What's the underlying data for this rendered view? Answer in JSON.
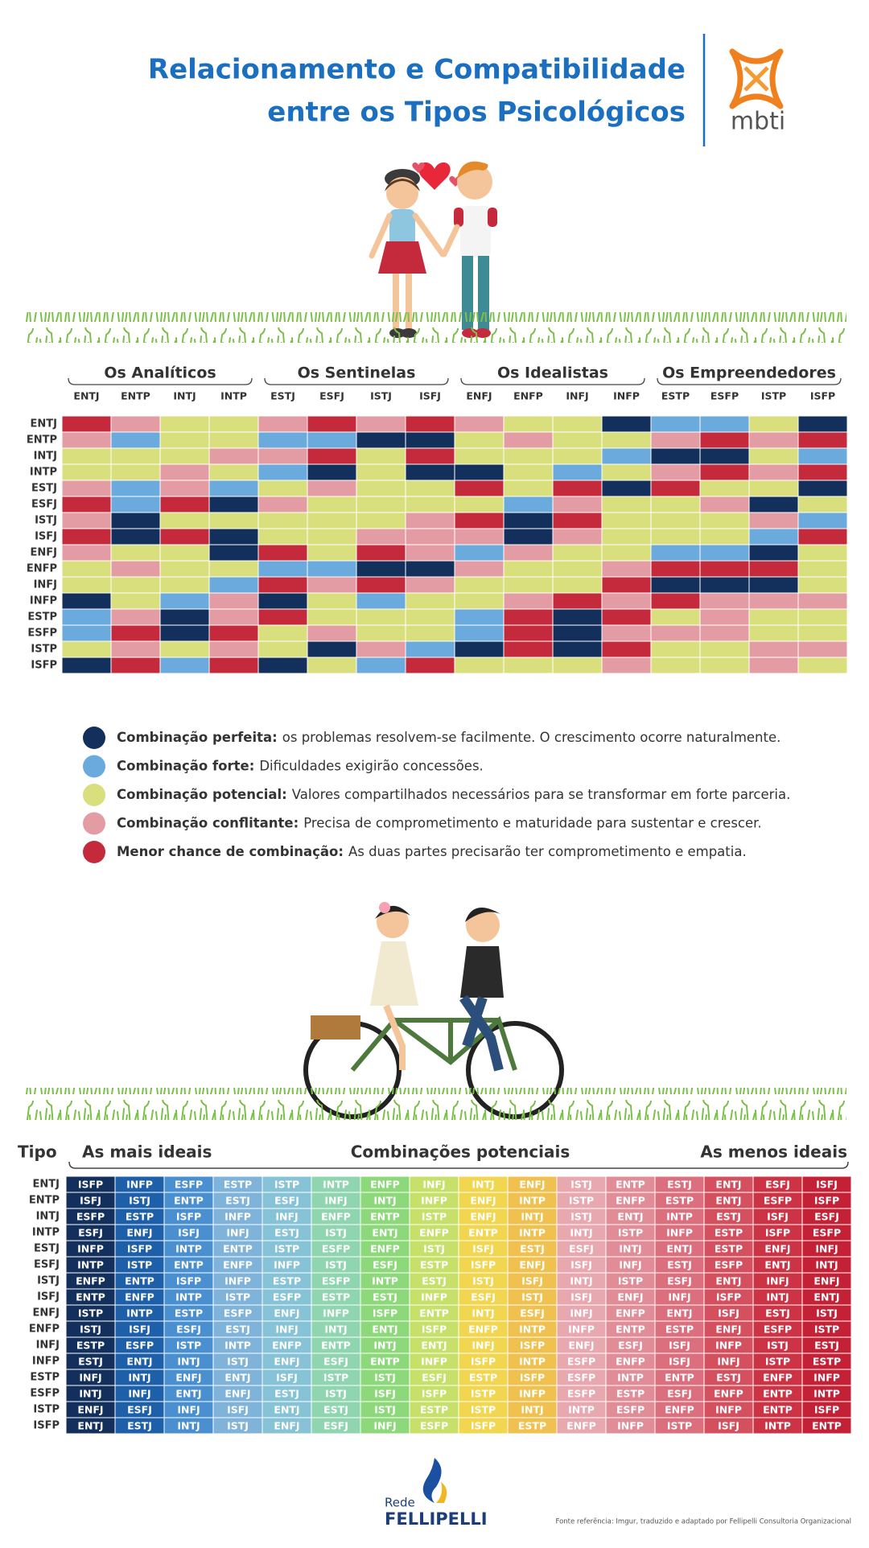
{
  "header": {
    "title_lines": [
      "Relacionamento e Compatibilidade",
      "entre os Tipos Psicológicos"
    ],
    "logo": "mbti"
  },
  "matrix": {
    "groups": [
      "Os Analíticos",
      "Os Sentinelas",
      "Os Idealistas",
      "Os Empreendedores"
    ],
    "columns": [
      "ENTJ",
      "ENTP",
      "INTJ",
      "INTP",
      "ESTJ",
      "ESFJ",
      "ISTJ",
      "ISFJ",
      "ENFJ",
      "ENFP",
      "INFJ",
      "INFP",
      "ESTP",
      "ESFP",
      "ISTP",
      "ISFP"
    ],
    "rows": [
      "ENTJ",
      "ENTP",
      "INTJ",
      "INTP",
      "ESTJ",
      "ESFJ",
      "ISTJ",
      "ISFJ",
      "ENFJ",
      "ENFP",
      "INFJ",
      "INFP",
      "ESTP",
      "ESFP",
      "ISTP",
      "ISFP"
    ],
    "cells": [
      [
        "#c42a3c",
        "#e49ca4",
        "#d8df7c",
        "#d8df7c",
        "#e49ca4",
        "#c42a3c",
        "#e49ca4",
        "#c42a3c",
        "#e49ca4",
        "#d8df7c",
        "#d8df7c",
        "#13305c",
        "#6aaadc",
        "#6aaadc",
        "#d8df7c",
        "#13305c"
      ],
      [
        "#e49ca4",
        "#6aaadc",
        "#d8df7c",
        "#d8df7c",
        "#6aaadc",
        "#6aaadc",
        "#13305c",
        "#13305c",
        "#d8df7c",
        "#e49ca4",
        "#d8df7c",
        "#d8df7c",
        "#e49ca4",
        "#c42a3c",
        "#e49ca4",
        "#c42a3c"
      ],
      [
        "#d8df7c",
        "#d8df7c",
        "#d8df7c",
        "#e49ca4",
        "#e49ca4",
        "#c42a3c",
        "#d8df7c",
        "#c42a3c",
        "#d8df7c",
        "#d8df7c",
        "#d8df7c",
        "#6aaadc",
        "#13305c",
        "#13305c",
        "#d8df7c",
        "#6aaadc"
      ],
      [
        "#d8df7c",
        "#d8df7c",
        "#e49ca4",
        "#d8df7c",
        "#6aaadc",
        "#13305c",
        "#d8df7c",
        "#13305c",
        "#13305c",
        "#d8df7c",
        "#6aaadc",
        "#d8df7c",
        "#e49ca4",
        "#c42a3c",
        "#e49ca4",
        "#c42a3c"
      ],
      [
        "#e49ca4",
        "#6aaadc",
        "#e49ca4",
        "#6aaadc",
        "#d8df7c",
        "#e49ca4",
        "#d8df7c",
        "#d8df7c",
        "#c42a3c",
        "#d8df7c",
        "#c42a3c",
        "#13305c",
        "#c42a3c",
        "#d8df7c",
        "#d8df7c",
        "#13305c"
      ],
      [
        "#c42a3c",
        "#6aaadc",
        "#c42a3c",
        "#13305c",
        "#e49ca4",
        "#d8df7c",
        "#d8df7c",
        "#d8df7c",
        "#d8df7c",
        "#6aaadc",
        "#e49ca4",
        "#d8df7c",
        "#d8df7c",
        "#e49ca4",
        "#13305c",
        "#d8df7c"
      ],
      [
        "#e49ca4",
        "#13305c",
        "#d8df7c",
        "#d8df7c",
        "#d8df7c",
        "#d8df7c",
        "#d8df7c",
        "#e49ca4",
        "#c42a3c",
        "#13305c",
        "#c42a3c",
        "#d8df7c",
        "#d8df7c",
        "#d8df7c",
        "#e49ca4",
        "#6aaadc"
      ],
      [
        "#c42a3c",
        "#13305c",
        "#c42a3c",
        "#13305c",
        "#d8df7c",
        "#d8df7c",
        "#e49ca4",
        "#e49ca4",
        "#e49ca4",
        "#13305c",
        "#e49ca4",
        "#d8df7c",
        "#d8df7c",
        "#d8df7c",
        "#6aaadc",
        "#c42a3c"
      ],
      [
        "#e49ca4",
        "#d8df7c",
        "#d8df7c",
        "#13305c",
        "#c42a3c",
        "#d8df7c",
        "#c42a3c",
        "#e49ca4",
        "#6aaadc",
        "#e49ca4",
        "#d8df7c",
        "#d8df7c",
        "#6aaadc",
        "#6aaadc",
        "#13305c",
        "#d8df7c"
      ],
      [
        "#d8df7c",
        "#e49ca4",
        "#d8df7c",
        "#d8df7c",
        "#6aaadc",
        "#6aaadc",
        "#13305c",
        "#13305c",
        "#e49ca4",
        "#d8df7c",
        "#d8df7c",
        "#e49ca4",
        "#c42a3c",
        "#c42a3c",
        "#c42a3c",
        "#d8df7c"
      ],
      [
        "#d8df7c",
        "#d8df7c",
        "#d8df7c",
        "#6aaadc",
        "#c42a3c",
        "#e49ca4",
        "#c42a3c",
        "#e49ca4",
        "#d8df7c",
        "#d8df7c",
        "#d8df7c",
        "#c42a3c",
        "#13305c",
        "#13305c",
        "#13305c",
        "#d8df7c"
      ],
      [
        "#13305c",
        "#d8df7c",
        "#6aaadc",
        "#e49ca4",
        "#13305c",
        "#d8df7c",
        "#6aaadc",
        "#d8df7c",
        "#d8df7c",
        "#e49ca4",
        "#c42a3c",
        "#e49ca4",
        "#c42a3c",
        "#e49ca4",
        "#e49ca4",
        "#e49ca4"
      ],
      [
        "#6aaadc",
        "#e49ca4",
        "#13305c",
        "#e49ca4",
        "#c42a3c",
        "#d8df7c",
        "#d8df7c",
        "#d8df7c",
        "#6aaadc",
        "#c42a3c",
        "#13305c",
        "#c42a3c",
        "#d8df7c",
        "#e49ca4",
        "#d8df7c",
        "#d8df7c"
      ],
      [
        "#6aaadc",
        "#c42a3c",
        "#13305c",
        "#c42a3c",
        "#d8df7c",
        "#e49ca4",
        "#d8df7c",
        "#d8df7c",
        "#6aaadc",
        "#c42a3c",
        "#13305c",
        "#e49ca4",
        "#e49ca4",
        "#e49ca4",
        "#d8df7c",
        "#d8df7c"
      ],
      [
        "#d8df7c",
        "#e49ca4",
        "#d8df7c",
        "#e49ca4",
        "#d8df7c",
        "#13305c",
        "#e49ca4",
        "#6aaadc",
        "#13305c",
        "#c42a3c",
        "#13305c",
        "#c42a3c",
        "#d8df7c",
        "#d8df7c",
        "#e49ca4",
        "#e49ca4"
      ],
      [
        "#13305c",
        "#c42a3c",
        "#6aaadc",
        "#c42a3c",
        "#13305c",
        "#d8df7c",
        "#6aaadc",
        "#c42a3c",
        "#d8df7c",
        "#d8df7c",
        "#d8df7c",
        "#e49ca4",
        "#d8df7c",
        "#d8df7c",
        "#e49ca4",
        "#d8df7c"
      ]
    ]
  },
  "legend": [
    {
      "label": "Combinação perfeita:",
      "text": "os problemas resolvem-se facilmente. O crescimento ocorre naturalmente.",
      "color": "#13305c"
    },
    {
      "label": "Combinação forte:",
      "text": "Dificuldades exigirão concessões.",
      "color": "#6aaadc"
    },
    {
      "label": "Combinação potencial:",
      "text": "Valores compartilhados necessários para se transformar em forte parceria.",
      "color": "#d8df7c"
    },
    {
      "label": "Combinação conflitante:",
      "text": "Precisa de comprometimento e maturidade para sustentar e crescer.",
      "color": "#e49ca4"
    },
    {
      "label": "Menor chance de combinação:",
      "text": "As duas partes precisarão ter comprometimento e empatia.",
      "color": "#c42a3c"
    }
  ],
  "ranking": {
    "type_header": "Tipo",
    "best_header": "As mais ideais",
    "mid_header": "Combinações potenciais",
    "worst_header": "As menos ideais",
    "column_colors": [
      "#13305c",
      "#1d5fa8",
      "#4a90d0",
      "#7fb3d9",
      "#86c3d6",
      "#8fd6b0",
      "#8cd87a",
      "#c6e06a",
      "#f2d64f",
      "#f0c14e",
      "#e8a8b0",
      "#e08d98",
      "#db6f7e",
      "#d4505f",
      "#cc3446",
      "#c42036"
    ],
    "rows": [
      {
        "type": "ENTJ",
        "matches": [
          "ISFP",
          "INFP",
          "ESFP",
          "ESTP",
          "ISTP",
          "INTP",
          "ENFP",
          "INFJ",
          "INTJ",
          "ENFJ",
          "ISTJ",
          "ENTP",
          "ESTJ",
          "ENTJ",
          "ESFJ",
          "ISFJ"
        ]
      },
      {
        "type": "ENTP",
        "matches": [
          "ISFJ",
          "ISTJ",
          "ENTP",
          "ESTJ",
          "ESFJ",
          "INFJ",
          "INTJ",
          "INFP",
          "ENFJ",
          "INTP",
          "ISTP",
          "ENFP",
          "ESTP",
          "ENTJ",
          "ESFP",
          "ISFP"
        ]
      },
      {
        "type": "INTJ",
        "matches": [
          "ESFP",
          "ESTP",
          "ISFP",
          "INFP",
          "INFJ",
          "ENFP",
          "ENTP",
          "ISTP",
          "ENFJ",
          "INTJ",
          "ISTJ",
          "ENTJ",
          "INTP",
          "ESTJ",
          "ISFJ",
          "ESFJ"
        ]
      },
      {
        "type": "INTP",
        "matches": [
          "ESFJ",
          "ENFJ",
          "ISFJ",
          "INFJ",
          "ESTJ",
          "ISTJ",
          "ENTJ",
          "ENFP",
          "ENTP",
          "INTP",
          "INTJ",
          "ISTP",
          "INFP",
          "ESTP",
          "ISFP",
          "ESFP"
        ]
      },
      {
        "type": "ESTJ",
        "matches": [
          "INFP",
          "ISFP",
          "INTP",
          "ENTP",
          "ISTP",
          "ESFP",
          "ENFP",
          "ISTJ",
          "ISFJ",
          "ESTJ",
          "ESFJ",
          "INTJ",
          "ENTJ",
          "ESTP",
          "ENFJ",
          "INFJ"
        ]
      },
      {
        "type": "ESFJ",
        "matches": [
          "INTP",
          "ISTP",
          "ENTP",
          "ENFP",
          "INFP",
          "ISTJ",
          "ESFJ",
          "ESTP",
          "ISFP",
          "ENFJ",
          "ISFJ",
          "INFJ",
          "ESTJ",
          "ESFP",
          "ENTJ",
          "INTJ"
        ]
      },
      {
        "type": "ISTJ",
        "matches": [
          "ENFP",
          "ENTP",
          "ISFP",
          "INFP",
          "ESTP",
          "ESFP",
          "INTP",
          "ESTJ",
          "ISTJ",
          "ISFJ",
          "INTJ",
          "ISTP",
          "ESFJ",
          "ENTJ",
          "INFJ",
          "ENFJ"
        ]
      },
      {
        "type": "ISFJ",
        "matches": [
          "ENTP",
          "ENFP",
          "INTP",
          "ISTP",
          "ESFP",
          "ESTP",
          "ESTJ",
          "INFP",
          "ESFJ",
          "ISTJ",
          "ISFJ",
          "ENFJ",
          "INFJ",
          "ISFP",
          "INTJ",
          "ENTJ"
        ]
      },
      {
        "type": "ENFJ",
        "matches": [
          "ISTP",
          "INTP",
          "ESTP",
          "ESFP",
          "ENFJ",
          "INFP",
          "ISFP",
          "ENTP",
          "INTJ",
          "ESFJ",
          "INFJ",
          "ENFP",
          "ENTJ",
          "ISFJ",
          "ESTJ",
          "ISTJ"
        ]
      },
      {
        "type": "ENFP",
        "matches": [
          "ISTJ",
          "ISFJ",
          "ESFJ",
          "ESTJ",
          "INFJ",
          "INTJ",
          "ENTJ",
          "ISFP",
          "ENFP",
          "INTP",
          "INFP",
          "ENTP",
          "ESTP",
          "ENFJ",
          "ESFP",
          "ISTP"
        ]
      },
      {
        "type": "INFJ",
        "matches": [
          "ESTP",
          "ESFP",
          "ISTP",
          "INTP",
          "ENFP",
          "ENTP",
          "INTJ",
          "ENTJ",
          "INFJ",
          "ISFP",
          "ENFJ",
          "ESFJ",
          "ISFJ",
          "INFP",
          "ISTJ",
          "ESTJ"
        ]
      },
      {
        "type": "INFP",
        "matches": [
          "ESTJ",
          "ENTJ",
          "INTJ",
          "ISTJ",
          "ENFJ",
          "ESFJ",
          "ENTP",
          "INFP",
          "ISFP",
          "INTP",
          "ESFP",
          "ENFP",
          "ISFJ",
          "INFJ",
          "ISTP",
          "ESTP"
        ]
      },
      {
        "type": "ESTP",
        "matches": [
          "INFJ",
          "INTJ",
          "ENFJ",
          "ENTJ",
          "ISFJ",
          "ISTP",
          "ISTJ",
          "ESFJ",
          "ESTP",
          "ISFP",
          "ESFP",
          "INTP",
          "ENTP",
          "ESTJ",
          "ENFP",
          "INFP"
        ]
      },
      {
        "type": "ESFP",
        "matches": [
          "INTJ",
          "INFJ",
          "ENTJ",
          "ENFJ",
          "ESTJ",
          "ISTJ",
          "ISFJ",
          "ISFP",
          "ISTP",
          "INFP",
          "ESFP",
          "ESTP",
          "ESFJ",
          "ENFP",
          "ENTP",
          "INTP"
        ]
      },
      {
        "type": "ISTP",
        "matches": [
          "ENFJ",
          "ESFJ",
          "INFJ",
          "ISFJ",
          "ENTJ",
          "ESTJ",
          "ISTJ",
          "ESTP",
          "ISTP",
          "INTJ",
          "INTP",
          "ESFP",
          "ENFP",
          "INFP",
          "ENTP",
          "ISFP"
        ]
      },
      {
        "type": "ISFP",
        "matches": [
          "ENTJ",
          "ESTJ",
          "INTJ",
          "ISTJ",
          "ENFJ",
          "ESFJ",
          "INFJ",
          "ESFP",
          "ISFP",
          "ESTP",
          "ENFP",
          "INFP",
          "ISTP",
          "ISFJ",
          "INTP",
          "ENTP"
        ]
      }
    ]
  },
  "footer": {
    "brand_top": "Rede",
    "brand": "FELLIPELLI",
    "source": "Fonte referência: Imgur, traduzido e adaptado por Fellipelli Consultoria Organizacional"
  }
}
